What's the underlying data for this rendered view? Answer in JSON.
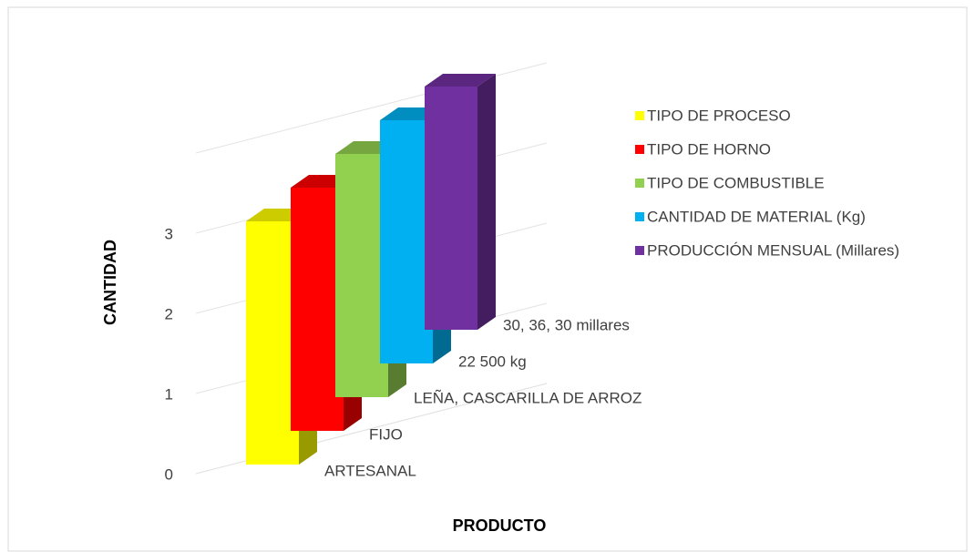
{
  "chart_data": {
    "type": "bar3d",
    "x_label": "PRODUCTO",
    "y_label": "CANTIDAD",
    "categories": [
      "ARTESANAL",
      "FIJO",
      "LEÑA, CASCARILLA DE ARROZ",
      "22 500 kg",
      "30, 36, 30 millares"
    ],
    "series": [
      {
        "name": "TIPO DE PROCESO",
        "color": "#ffff00",
        "values": [
          3,
          null,
          null,
          null,
          null
        ]
      },
      {
        "name": "TIPO DE HORNO",
        "color": "#ff0000",
        "values": [
          null,
          3,
          null,
          null,
          null
        ]
      },
      {
        "name": "TIPO DE COMBUSTIBLE",
        "color": "#92d050",
        "values": [
          null,
          null,
          3,
          null,
          null
        ]
      },
      {
        "name": "CANTIDAD DE MATERIAL (Kg)",
        "color": "#00b0f0",
        "values": [
          null,
          null,
          null,
          3,
          null
        ]
      },
      {
        "name": "PRODUCCIÓN MENSUAL (Millares)",
        "color": "#7030a0",
        "values": [
          null,
          null,
          null,
          null,
          3
        ]
      }
    ],
    "ylim": [
      0,
      4
    ],
    "yticks": [
      0,
      1,
      2,
      3
    ],
    "grid": true,
    "legend": "right"
  }
}
